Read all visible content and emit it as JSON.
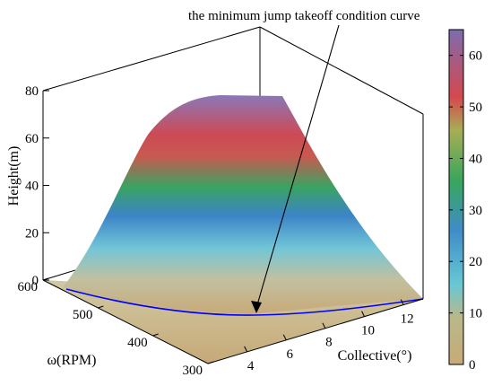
{
  "chart_data": {
    "type": "surface",
    "annotation": "the minimum jump takeoff condition curve",
    "xlabel": "Collective(°)",
    "ylabel": "ω(RPM)",
    "zlabel": "Height(m)",
    "xlim": [
      2,
      13
    ],
    "ylim": [
      300,
      600
    ],
    "zlim": [
      0,
      80
    ],
    "xticks": [
      "4",
      "6",
      "8",
      "10",
      "12"
    ],
    "yticks": [
      "300",
      "400",
      "500",
      "600"
    ],
    "zticks": [
      "0",
      "20",
      "40",
      "60",
      "80"
    ],
    "colorbar": {
      "range": [
        0,
        65
      ],
      "ticks": [
        "0",
        "10",
        "20",
        "30",
        "40",
        "50",
        "60"
      ],
      "colors": [
        "#c8aa78",
        "#b9b889",
        "#67c8d4",
        "#3f8cc8",
        "#38a65c",
        "#a8ad56",
        "#d5484e",
        "#7d6cae"
      ]
    },
    "surface_height_max": 64,
    "curve_color": "#0000ff",
    "grid": false
  }
}
